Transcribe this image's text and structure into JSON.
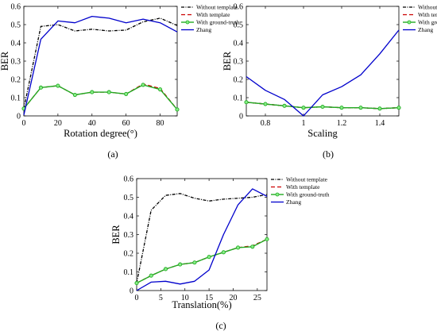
{
  "legend_entries": [
    "Without template",
    "With template",
    "With ground-truth",
    "Zhang"
  ],
  "series_colors": {
    "Without template": "#000000",
    "With template": "#cc0000",
    "With ground-truth": "#22aa22",
    "Zhang": "#0000cc"
  },
  "chart_data": [
    {
      "type": "line",
      "panel_label": "(a)",
      "xlabel": "Rotation degree(°)",
      "ylabel": "BER",
      "xlim": [
        0,
        90
      ],
      "ylim": [
        0,
        0.6
      ],
      "xticks": [
        0,
        20,
        40,
        60,
        80
      ],
      "xtick_labels": [
        "0",
        "20",
        "40",
        "60",
        "80"
      ],
      "yticks": [
        0,
        0.1,
        0.2,
        0.3,
        0.4,
        0.5,
        0.6
      ],
      "ytick_labels": [
        "0",
        "0.1",
        "0.2",
        "0.3",
        "0.4",
        "0.5",
        "0.6"
      ],
      "legend_position": "top-right",
      "grid": false,
      "x": [
        0,
        10,
        20,
        30,
        40,
        50,
        60,
        70,
        80,
        90
      ],
      "series": [
        {
          "name": "Without template",
          "values": [
            0.04,
            0.49,
            0.5,
            0.465,
            0.475,
            0.465,
            0.47,
            0.515,
            0.535,
            0.495
          ]
        },
        {
          "name": "With template",
          "values": [
            0.04,
            0.155,
            0.165,
            0.115,
            0.13,
            0.13,
            0.12,
            0.175,
            0.15,
            0.035
          ]
        },
        {
          "name": "With ground-truth",
          "values": [
            0.04,
            0.155,
            0.165,
            0.115,
            0.13,
            0.13,
            0.12,
            0.17,
            0.145,
            0.035
          ]
        },
        {
          "name": "Zhang",
          "values": [
            0.005,
            0.42,
            0.52,
            0.51,
            0.545,
            0.535,
            0.51,
            0.53,
            0.51,
            0.46
          ]
        }
      ]
    },
    {
      "type": "line",
      "panel_label": "(b)",
      "xlabel": "Scaling",
      "ylabel": "BER",
      "xlim": [
        0.7,
        1.5
      ],
      "ylim": [
        0,
        0.6
      ],
      "xticks": [
        0.8,
        1,
        1.2,
        1.4
      ],
      "xtick_labels": [
        "0.8",
        "1",
        "1.2",
        "1.4"
      ],
      "yticks": [
        0,
        0.1,
        0.2,
        0.3,
        0.4,
        0.5,
        0.6
      ],
      "ytick_labels": [
        "0",
        "0.1",
        "0.2",
        "0.3",
        "0.4",
        "0.5",
        "0.6"
      ],
      "legend_position": "top-right",
      "grid": false,
      "x": [
        0.7,
        0.8,
        0.9,
        1.0,
        1.1,
        1.2,
        1.3,
        1.4,
        1.5
      ],
      "series": [
        {
          "name": "Without template",
          "values": [
            0.075,
            0.065,
            0.055,
            0.045,
            0.05,
            0.045,
            0.045,
            0.04,
            0.045
          ]
        },
        {
          "name": "With template",
          "values": [
            0.075,
            0.065,
            0.055,
            0.045,
            0.05,
            0.045,
            0.045,
            0.04,
            0.045
          ]
        },
        {
          "name": "With ground-truth",
          "values": [
            0.075,
            0.065,
            0.055,
            0.045,
            0.05,
            0.045,
            0.045,
            0.04,
            0.045
          ]
        },
        {
          "name": "Zhang",
          "values": [
            0.215,
            0.14,
            0.09,
            0.0,
            0.115,
            0.16,
            0.225,
            0.34,
            0.47
          ]
        }
      ]
    },
    {
      "type": "line",
      "panel_label": "(c)",
      "xlabel": "Translation(%)",
      "ylabel": "BER",
      "xlim": [
        0,
        27
      ],
      "ylim": [
        0,
        0.6
      ],
      "xticks": [
        0,
        5,
        10,
        15,
        20,
        25
      ],
      "xtick_labels": [
        "0",
        "5",
        "10",
        "15",
        "20",
        "25"
      ],
      "yticks": [
        0,
        0.1,
        0.2,
        0.3,
        0.4,
        0.5,
        0.6
      ],
      "ytick_labels": [
        "0",
        "0.1",
        "0.2",
        "0.3",
        "0.4",
        "0.5",
        "0.6"
      ],
      "legend_position": "top-right",
      "grid": false,
      "x": [
        0,
        3,
        6,
        9,
        12,
        15,
        18,
        21,
        24,
        27
      ],
      "series": [
        {
          "name": "Without template",
          "values": [
            0.04,
            0.43,
            0.51,
            0.52,
            0.495,
            0.48,
            0.49,
            0.495,
            0.5,
            0.515
          ]
        },
        {
          "name": "With template",
          "values": [
            0.04,
            0.08,
            0.115,
            0.14,
            0.15,
            0.18,
            0.205,
            0.23,
            0.24,
            0.275
          ]
        },
        {
          "name": "With ground-truth",
          "values": [
            0.04,
            0.08,
            0.115,
            0.14,
            0.15,
            0.18,
            0.205,
            0.23,
            0.235,
            0.275
          ]
        },
        {
          "name": "Zhang",
          "values": [
            0.0,
            0.045,
            0.05,
            0.035,
            0.05,
            0.11,
            0.3,
            0.46,
            0.545,
            0.505
          ]
        }
      ]
    }
  ]
}
